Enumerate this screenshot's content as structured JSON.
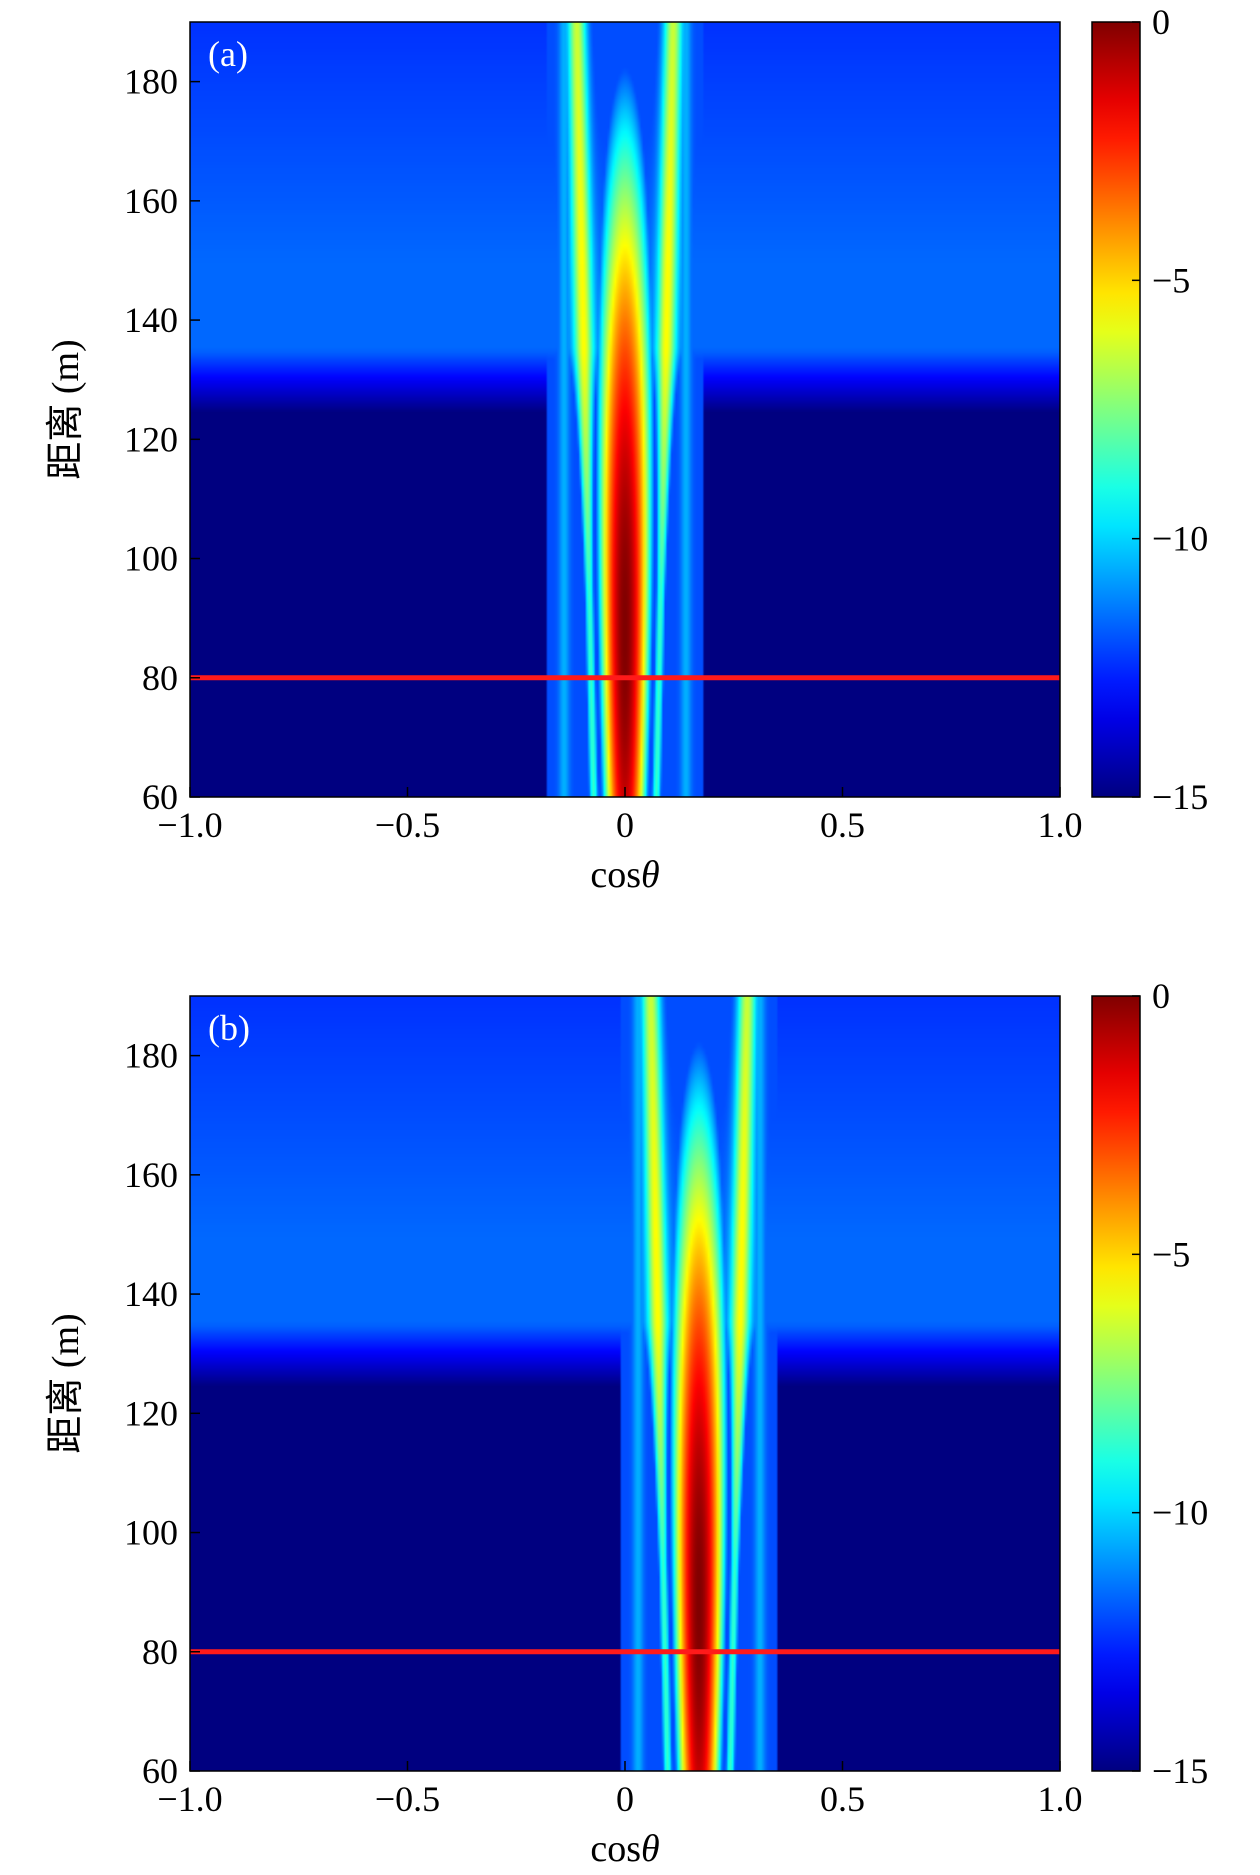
{
  "chart_data": [
    {
      "type": "heatmap",
      "panel_label": "(a)",
      "xlabel_prefix": "cos",
      "xlabel_symbol": "θ",
      "ylabel": "距离 (m)",
      "xlim": [
        -1.0,
        1.0
      ],
      "ylim": [
        60,
        190
      ],
      "x_ticks": [
        -1.0,
        -0.5,
        0,
        0.5,
        1.0
      ],
      "x_tick_labels": [
        "−1.0",
        "−0.5",
        "0",
        "0.5",
        "1.0"
      ],
      "y_ticks": [
        60,
        80,
        100,
        120,
        140,
        160,
        180
      ],
      "y_tick_labels": [
        "60",
        "80",
        "100",
        "120",
        "140",
        "160",
        "180"
      ],
      "colorbar": {
        "range": [
          -15,
          0
        ],
        "ticks": [
          0,
          -5,
          -10,
          -15
        ],
        "tick_labels": [
          "0",
          "−5",
          "−10",
          "−15"
        ],
        "colormap": "jet"
      },
      "beam": {
        "center_cos": 0.0,
        "peak_range_m": 88,
        "peak_value": 0,
        "floor_value": -15
      },
      "marker_line": {
        "y": 80,
        "x": [
          -1.0,
          1.0
        ],
        "color": "#ff1a1a"
      }
    },
    {
      "type": "heatmap",
      "panel_label": "(b)",
      "xlabel_prefix": "cos",
      "xlabel_symbol": "θ",
      "ylabel": "距离 (m)",
      "xlim": [
        -1.0,
        1.0
      ],
      "ylim": [
        60,
        190
      ],
      "x_ticks": [
        -1.0,
        -0.5,
        0,
        0.5,
        1.0
      ],
      "x_tick_labels": [
        "−1.0",
        "−0.5",
        "0",
        "0.5",
        "1.0"
      ],
      "y_ticks": [
        60,
        80,
        100,
        120,
        140,
        160,
        180
      ],
      "y_tick_labels": [
        "60",
        "80",
        "100",
        "120",
        "140",
        "160",
        "180"
      ],
      "colorbar": {
        "range": [
          -15,
          0
        ],
        "ticks": [
          0,
          -5,
          -10,
          -15
        ],
        "tick_labels": [
          "0",
          "−5",
          "−10",
          "−15"
        ],
        "colormap": "jet"
      },
      "beam": {
        "center_cos": 0.17,
        "peak_range_m": 88,
        "peak_value": 0,
        "floor_value": -15
      },
      "marker_line": {
        "y": 80,
        "x": [
          -1.0,
          1.0
        ],
        "color": "#ff1a1a"
      }
    }
  ]
}
